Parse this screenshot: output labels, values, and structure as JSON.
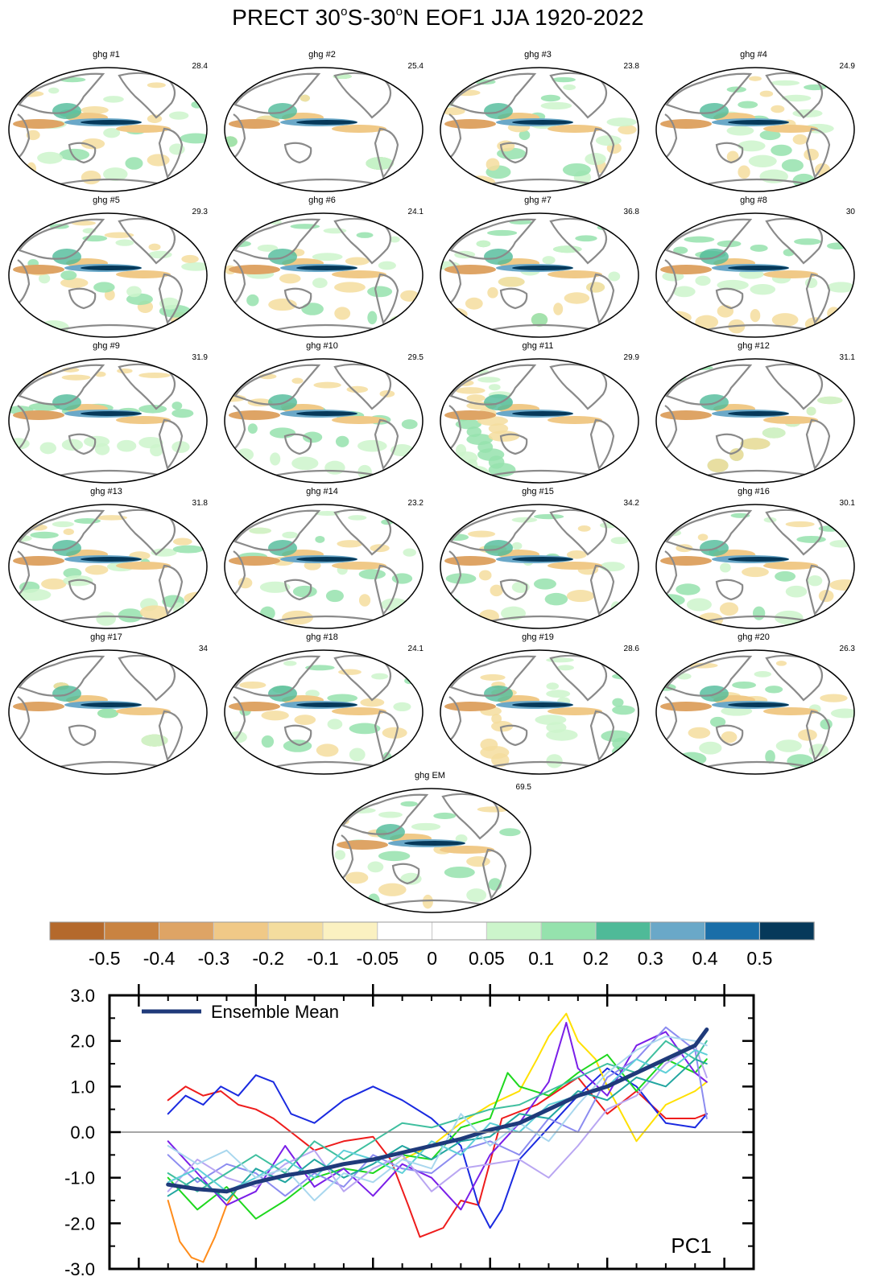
{
  "title": {
    "field": "PRECT",
    "lat_south": "30",
    "lat_north": "30",
    "deg": "o",
    "rest": "N EOF1 JJA 1920-2022"
  },
  "maps": [
    {
      "label": "ghg #1",
      "variance": "28.4"
    },
    {
      "label": "ghg #2",
      "variance": "25.4"
    },
    {
      "label": "ghg #3",
      "variance": "23.8"
    },
    {
      "label": "ghg #4",
      "variance": "24.9"
    },
    {
      "label": "ghg #5",
      "variance": "29.3"
    },
    {
      "label": "ghg #6",
      "variance": "24.1"
    },
    {
      "label": "ghg #7",
      "variance": "36.8"
    },
    {
      "label": "ghg #8",
      "variance": "30"
    },
    {
      "label": "ghg #9",
      "variance": "31.9"
    },
    {
      "label": "ghg #10",
      "variance": "29.5"
    },
    {
      "label": "ghg #11",
      "variance": "29.9"
    },
    {
      "label": "ghg #12",
      "variance": "31.1"
    },
    {
      "label": "ghg #13",
      "variance": "31.8"
    },
    {
      "label": "ghg #14",
      "variance": "23.2"
    },
    {
      "label": "ghg #15",
      "variance": "34.2"
    },
    {
      "label": "ghg #16",
      "variance": "30.1"
    },
    {
      "label": "ghg #17",
      "variance": "34"
    },
    {
      "label": "ghg #18",
      "variance": "24.1"
    },
    {
      "label": "ghg #19",
      "variance": "28.6"
    },
    {
      "label": "ghg #20",
      "variance": "26.3"
    },
    {
      "label": "ghg EM",
      "variance": "69.5"
    }
  ],
  "colorbar": {
    "colors": [
      "#b4692c",
      "#c98341",
      "#dea465",
      "#f0c987",
      "#f4dd9e",
      "#fbf1c1",
      "#ffffff",
      "#ffffff",
      "#ccf5cb",
      "#95e2ad",
      "#4fba98",
      "#6aa8c8",
      "#1a6ea8",
      "#06395a"
    ],
    "labels": [
      "-0.5",
      "-0.4",
      "-0.3",
      "-0.2",
      "-0.1",
      "-0.05",
      "0",
      "0.05",
      "0.1",
      "0.2",
      "0.3",
      "0.4",
      "0.5"
    ]
  },
  "chart_data": {
    "type": "line",
    "title": "",
    "panel_label": "PC1",
    "xlabel": "",
    "ylabel": "",
    "xlim": [
      1915,
      2025
    ],
    "ylim": [
      -3.0,
      3.0
    ],
    "xticks": [
      1920,
      1940,
      1960,
      1980,
      2000,
      2020
    ],
    "yticks": [
      3.0,
      2.0,
      1.0,
      0.0,
      -1.0,
      -2.0,
      -3.0
    ],
    "ytick_labels": [
      "3.0",
      "2.0",
      "1.0",
      "0.0",
      "-1.0",
      "-2.0",
      "-3.0"
    ],
    "legend": {
      "label": "Ensemble Mean",
      "position": "top-left",
      "color": "#1f3a7a"
    },
    "zero_line": true,
    "series": [
      {
        "name": "Ensemble Mean",
        "color": "#1f3a7a",
        "width": 5,
        "x": [
          1925,
          1930,
          1935,
          1940,
          1945,
          1950,
          1955,
          1960,
          1965,
          1970,
          1975,
          1980,
          1985,
          1990,
          1995,
          2000,
          2005,
          2010,
          2015,
          2017
        ],
        "y": [
          -1.15,
          -1.25,
          -1.3,
          -1.1,
          -0.95,
          -0.85,
          -0.7,
          -0.6,
          -0.45,
          -0.3,
          -0.15,
          0.05,
          0.2,
          0.5,
          0.8,
          1.0,
          1.3,
          1.6,
          1.9,
          2.25
        ]
      },
      {
        "name": "member (orange)",
        "color": "#ff8c1a",
        "width": 2,
        "x": [
          1925,
          1927,
          1929,
          1931,
          1933,
          1935,
          1937
        ],
        "y": [
          -1.5,
          -2.4,
          -2.75,
          -2.85,
          -2.3,
          -1.6,
          -1.2
        ]
      },
      {
        "name": "member (red)",
        "color": "#ee1c1c",
        "width": 2,
        "x": [
          1925,
          1928,
          1931,
          1934,
          1937,
          1940,
          1943,
          1946,
          1950,
          1955,
          1960,
          1963,
          1966,
          1968,
          1970,
          1972,
          1975,
          1978,
          1982,
          1988,
          1995,
          2000,
          2005,
          2010,
          2015,
          2017
        ],
        "y": [
          0.7,
          1.0,
          0.8,
          0.9,
          0.6,
          0.5,
          0.3,
          0.0,
          -0.4,
          -0.2,
          -0.1,
          -0.6,
          -1.6,
          -2.3,
          -2.2,
          -2.1,
          -1.5,
          -1.6,
          0.3,
          0.6,
          1.2,
          0.4,
          0.9,
          0.3,
          0.3,
          0.4
        ]
      },
      {
        "name": "member (blue)",
        "color": "#1a2ae0",
        "width": 2,
        "x": [
          1925,
          1928,
          1931,
          1934,
          1937,
          1940,
          1943,
          1946,
          1950,
          1955,
          1960,
          1965,
          1970,
          1975,
          1978,
          1980,
          1982,
          1985,
          1990,
          1995,
          2000,
          2005,
          2010,
          2015,
          2017
        ],
        "y": [
          0.4,
          0.8,
          0.6,
          1.0,
          0.8,
          1.25,
          1.1,
          0.4,
          0.2,
          0.7,
          1.0,
          0.7,
          0.3,
          -0.3,
          -1.6,
          -2.1,
          -1.7,
          -0.6,
          0.1,
          0.8,
          1.4,
          1.0,
          0.2,
          0.1,
          0.4
        ]
      },
      {
        "name": "member (yellow)",
        "color": "#ffe000",
        "width": 2,
        "x": [
          1965,
          1970,
          1975,
          1980,
          1985,
          1988,
          1990,
          1993,
          1995,
          1998,
          2000,
          2005,
          2010,
          2015,
          2017
        ],
        "y": [
          -0.6,
          -0.3,
          0.2,
          0.6,
          0.9,
          1.6,
          2.1,
          2.6,
          2.0,
          1.6,
          1.0,
          -0.2,
          0.6,
          0.9,
          1.1
        ]
      },
      {
        "name": "member (green)",
        "color": "#1ed81e",
        "width": 2,
        "x": [
          1925,
          1930,
          1935,
          1940,
          1945,
          1950,
          1955,
          1960,
          1965,
          1970,
          1975,
          1980,
          1983,
          1985,
          1990,
          1995,
          2000,
          2005,
          2010,
          2015,
          2017
        ],
        "y": [
          -1.0,
          -1.7,
          -1.2,
          -1.9,
          -1.5,
          -1.0,
          -0.8,
          -0.9,
          -0.5,
          -0.6,
          0.1,
          0.3,
          1.3,
          1.0,
          0.8,
          1.3,
          1.7,
          0.9,
          1.6,
          1.3,
          1.6
        ]
      },
      {
        "name": "member (violet)",
        "color": "#7a1fe8",
        "width": 2,
        "x": [
          1925,
          1930,
          1935,
          1940,
          1945,
          1950,
          1955,
          1960,
          1965,
          1970,
          1975,
          1980,
          1985,
          1990,
          1993,
          1995,
          2000,
          2005,
          2010,
          2015,
          2017
        ],
        "y": [
          -0.2,
          -0.9,
          -1.6,
          -1.3,
          -0.3,
          -1.2,
          -0.8,
          -1.4,
          -0.7,
          -1.0,
          -1.7,
          -0.5,
          0.2,
          1.1,
          2.4,
          1.4,
          0.8,
          1.9,
          2.2,
          1.3,
          1.1
        ]
      },
      {
        "name": "member (lavender)",
        "color": "#8c8cf0",
        "width": 2,
        "x": [
          1925,
          1930,
          1935,
          1940,
          1945,
          1950,
          1955,
          1960,
          1965,
          1970,
          1975,
          1980,
          1985,
          1990,
          1995,
          2000,
          2005,
          2010,
          2015,
          2017
        ],
        "y": [
          -0.5,
          -1.1,
          -0.7,
          -0.9,
          -1.4,
          -0.9,
          -1.2,
          -0.5,
          -0.8,
          -0.9,
          -0.4,
          -0.2,
          -0.5,
          0.3,
          0.0,
          1.2,
          1.6,
          2.3,
          1.8,
          0.3
        ]
      },
      {
        "name": "member (light purple)",
        "color": "#b9a6f2",
        "width": 2,
        "x": [
          1925,
          1930,
          1935,
          1940,
          1945,
          1950,
          1955,
          1960,
          1965,
          1970,
          1975,
          1980,
          1985,
          1990,
          1995,
          2000,
          2005,
          2010,
          2015,
          2017
        ],
        "y": [
          -1.3,
          -0.6,
          -1.0,
          -1.2,
          -0.7,
          -0.4,
          -1.3,
          -0.8,
          -0.5,
          -1.3,
          -0.8,
          -0.7,
          -0.6,
          -1.0,
          -0.3,
          0.5,
          0.8,
          1.5,
          1.9,
          1.2
        ]
      },
      {
        "name": "member (teal)",
        "color": "#22a6a0",
        "width": 2,
        "x": [
          1925,
          1930,
          1935,
          1940,
          1945,
          1950,
          1955,
          1960,
          1965,
          1970,
          1975,
          1980,
          1985,
          1990,
          1995,
          2000,
          2005,
          2010,
          2015,
          2017
        ],
        "y": [
          -1.4,
          -1.0,
          -1.5,
          -0.8,
          -1.1,
          -0.6,
          -1.0,
          -0.7,
          -0.3,
          -0.6,
          -0.2,
          -0.1,
          0.4,
          0.3,
          0.9,
          0.7,
          1.2,
          1.0,
          1.6,
          1.5
        ]
      },
      {
        "name": "member (sea green)",
        "color": "#3fbf9f",
        "width": 2,
        "x": [
          1925,
          1930,
          1935,
          1940,
          1945,
          1950,
          1955,
          1960,
          1965,
          1970,
          1975,
          1980,
          1985,
          1990,
          1995,
          2000,
          2005,
          2010,
          2015,
          2017
        ],
        "y": [
          -0.9,
          -1.3,
          -0.9,
          -0.5,
          -0.9,
          -0.2,
          -0.6,
          -0.2,
          0.2,
          0.1,
          0.3,
          0.5,
          0.6,
          0.9,
          1.2,
          1.5,
          1.3,
          2.0,
          1.6,
          2.0
        ]
      },
      {
        "name": "member (cyan)",
        "color": "#5fd0d8",
        "width": 2,
        "x": [
          1925,
          1930,
          1935,
          1940,
          1945,
          1950,
          1955,
          1960,
          1965,
          1970,
          1975,
          1980,
          1985,
          1990,
          1995,
          2000,
          2005,
          2010,
          2015,
          2017
        ],
        "y": [
          -1.1,
          -0.8,
          -1.3,
          -1.0,
          -0.6,
          -1.0,
          -0.4,
          -0.6,
          -0.9,
          -0.2,
          -0.5,
          0.2,
          0.0,
          0.6,
          0.8,
          1.0,
          1.6,
          1.3,
          1.8,
          1.7
        ]
      },
      {
        "name": "member (pale blue)",
        "color": "#a9d7ee",
        "width": 2,
        "x": [
          1925,
          1930,
          1935,
          1940,
          1945,
          1950,
          1955,
          1960,
          1965,
          1970,
          1975,
          1980,
          1985,
          1990,
          1995,
          2000,
          2005,
          2010,
          2015,
          2017
        ],
        "y": [
          -0.3,
          -0.7,
          -0.4,
          -1.0,
          -0.8,
          -1.5,
          -0.9,
          -1.1,
          -0.6,
          -0.8,
          0.4,
          -0.3,
          0.2,
          -0.2,
          0.6,
          1.3,
          1.8,
          2.1,
          2.0,
          1.9
        ]
      }
    ]
  }
}
